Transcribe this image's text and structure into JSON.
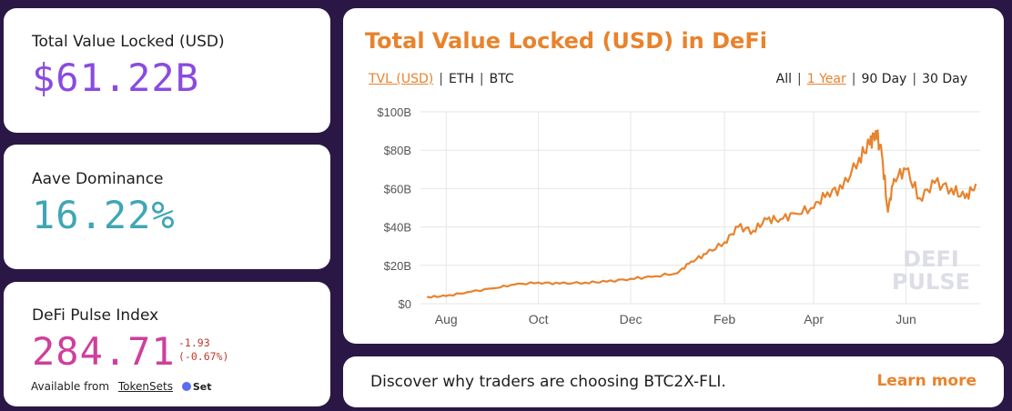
{
  "tvl_card": {
    "label": "Total Value Locked (USD)",
    "value": "$61.22B",
    "value_color": "#8a4bdf"
  },
  "aave_card": {
    "label": "Aave Dominance",
    "value": "16.22%",
    "value_color": "#3fa6b4"
  },
  "dpi_card": {
    "label": "DeFi Pulse Index",
    "value": "284.71",
    "change_abs": "-1.93",
    "change_pct": "(-0.67%)",
    "available_from": "Available from",
    "available_link": "TokenSets",
    "set_logo": "Set"
  },
  "chart_card": {
    "title": "Total Value Locked (USD) in DeFi",
    "metric_tabs": [
      {
        "label": "TVL (USD)",
        "active": true
      },
      {
        "label": "ETH",
        "active": false
      },
      {
        "label": "BTC",
        "active": false
      }
    ],
    "range_tabs": [
      {
        "label": "All",
        "active": false
      },
      {
        "label": "1 Year",
        "active": true
      },
      {
        "label": "90 Day",
        "active": false
      },
      {
        "label": "30 Day",
        "active": false
      }
    ],
    "watermark": [
      "DEFI",
      "PULSE"
    ],
    "accent": "#e8832d"
  },
  "promo": {
    "text": "Discover why traders are choosing BTC2X-FLI.",
    "link": "Learn more"
  },
  "chart_data": {
    "type": "line",
    "title": "Total Value Locked (USD) in DeFi",
    "xlabel": "",
    "ylabel": "",
    "x_ticks": [
      "Aug",
      "Oct",
      "Dec",
      "Feb",
      "Apr",
      "Jun"
    ],
    "y_ticks": [
      "$0",
      "$20B",
      "$40B",
      "$60B",
      "$80B",
      "$100B"
    ],
    "ylim": [
      0,
      100
    ],
    "grid": true,
    "series": [
      {
        "color": "#e8832d",
        "x": [
          "2020-07-20",
          "2020-08-01",
          "2020-08-15",
          "2020-09-01",
          "2020-09-15",
          "2020-10-01",
          "2020-10-15",
          "2020-11-01",
          "2020-11-15",
          "2020-12-01",
          "2020-12-15",
          "2021-01-01",
          "2021-01-10",
          "2021-01-20",
          "2021-02-01",
          "2021-02-10",
          "2021-02-20",
          "2021-03-01",
          "2021-03-10",
          "2021-03-20",
          "2021-04-01",
          "2021-04-10",
          "2021-04-20",
          "2021-05-01",
          "2021-05-08",
          "2021-05-12",
          "2021-05-16",
          "2021-05-20",
          "2021-05-24",
          "2021-06-01",
          "2021-06-10",
          "2021-06-20",
          "2021-07-01",
          "2021-07-10",
          "2021-07-17"
        ],
        "values": [
          3.5,
          4,
          6,
          8,
          10,
          11,
          10.5,
          11,
          11.5,
          13,
          14,
          16,
          22,
          26,
          32,
          40,
          38,
          44,
          44,
          47,
          50,
          58,
          60,
          76,
          83,
          90,
          78,
          48,
          65,
          70,
          55,
          63,
          60,
          55,
          62
        ]
      }
    ]
  }
}
